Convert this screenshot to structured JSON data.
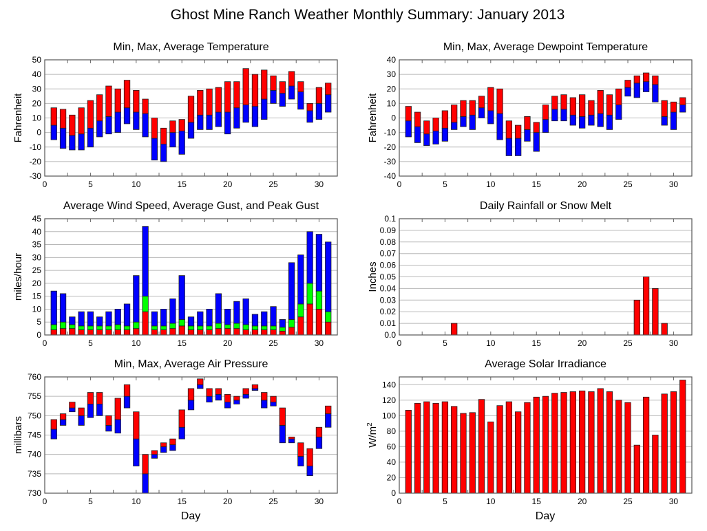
{
  "title": "Ghost Mine Ranch Weather Monthly Summary: January 2013",
  "xlabel": "Day",
  "colors": {
    "red": "#ff0000",
    "blue": "#0000ff",
    "green": "#00ff00"
  },
  "chart_data": [
    {
      "type": "bar",
      "title": "Min, Max, Average Temperature",
      "ylabel": "Fahrenheit",
      "ylim": [
        -30,
        50
      ],
      "yticks": [
        "-30",
        "-20",
        "-10",
        "0",
        "10",
        "20",
        "30",
        "40",
        "50"
      ],
      "xlim": [
        0,
        32
      ],
      "xticks": [
        "0",
        "5",
        "10",
        "15",
        "20",
        "25",
        "30"
      ],
      "mode": "minavgmax",
      "series": [
        {
          "name": "Min",
          "values": [
            -5,
            -11,
            -12,
            -12,
            -10,
            -3,
            -1,
            0,
            6,
            2,
            -3,
            -19,
            -20,
            -10,
            -15,
            -4,
            2,
            2,
            4,
            -1,
            3,
            7,
            4,
            9,
            20,
            18,
            23,
            16,
            7,
            9,
            14
          ]
        },
        {
          "name": "Average",
          "values": [
            5,
            3,
            -2,
            -1,
            3,
            8,
            11,
            14,
            17,
            14,
            13,
            -4,
            -8,
            0,
            1,
            7,
            12,
            12,
            14,
            14,
            17,
            19,
            18,
            23,
            29,
            27,
            32,
            28,
            15,
            20,
            26
          ]
        },
        {
          "name": "Max",
          "values": [
            17,
            16,
            12,
            17,
            22,
            26,
            32,
            30,
            36,
            29,
            23,
            10,
            3,
            8,
            9,
            25,
            29,
            30,
            31,
            35,
            35,
            44,
            40,
            43,
            39,
            35,
            42,
            35,
            20,
            31,
            34
          ]
        }
      ]
    },
    {
      "type": "bar",
      "title": "Min, Max, Average Dewpoint Temperature",
      "ylabel": "Fahrenheit",
      "ylim": [
        -40,
        40
      ],
      "yticks": [
        "-40",
        "-30",
        "-20",
        "-10",
        "0",
        "10",
        "20",
        "30",
        "40"
      ],
      "xlim": [
        0,
        32
      ],
      "xticks": [
        "0",
        "5",
        "10",
        "15",
        "20",
        "25",
        "30"
      ],
      "mode": "minavgmax",
      "series": [
        {
          "name": "Min",
          "values": [
            -13,
            -17,
            -19,
            -18,
            -16,
            -8,
            -6,
            -8,
            0,
            -4,
            -15,
            -26,
            -26,
            -16,
            -23,
            -10,
            -2,
            -2,
            -5,
            -7,
            -5,
            -6,
            -8,
            -1,
            15,
            14,
            18,
            11,
            -5,
            -8,
            4
          ]
        },
        {
          "name": "Average",
          "values": [
            -2,
            -6,
            -11,
            -9,
            -7,
            -3,
            1,
            2,
            7,
            5,
            3,
            -14,
            -14,
            -8,
            -10,
            -1,
            6,
            6,
            2,
            1,
            2,
            3,
            2,
            9,
            21,
            24,
            25,
            23,
            1,
            4,
            9
          ]
        },
        {
          "name": "Max",
          "values": [
            8,
            4,
            -2,
            0,
            5,
            9,
            12,
            12,
            15,
            21,
            20,
            -2,
            -5,
            1,
            -3,
            9,
            15,
            16,
            14,
            16,
            12,
            19,
            16,
            20,
            26,
            29,
            31,
            29,
            12,
            11,
            14
          ]
        }
      ]
    },
    {
      "type": "bar",
      "title": "Average Wind Speed, Average Gust, and Peak Gust",
      "ylabel": "miles/hour",
      "ylim": [
        0,
        45
      ],
      "yticks": [
        "0",
        "5",
        "10",
        "15",
        "20",
        "25",
        "30",
        "35",
        "40",
        "45"
      ],
      "xlim": [
        0,
        32
      ],
      "xticks": [
        "0",
        "5",
        "10",
        "15",
        "20",
        "25",
        "30"
      ],
      "mode": "stack3",
      "series": [
        {
          "name": "Average Wind Speed",
          "values": [
            2,
            2.5,
            2.5,
            2,
            2,
            2,
            2,
            2,
            2,
            2.5,
            9,
            2,
            2,
            2.5,
            3.5,
            2,
            2,
            2,
            2.5,
            2.5,
            2.5,
            2,
            2,
            2,
            2,
            1.5,
            3,
            7,
            12,
            10,
            5
          ]
        },
        {
          "name": "Average Gust",
          "values": [
            4,
            5,
            4,
            3.5,
            3.5,
            3.5,
            3.5,
            4,
            3.5,
            5,
            15,
            3.5,
            3.5,
            4.5,
            6,
            3.5,
            3.5,
            3.5,
            4.5,
            4,
            4.5,
            4,
            3.5,
            3.5,
            3.5,
            3,
            6,
            12,
            20,
            17,
            9
          ]
        },
        {
          "name": "Peak Gust",
          "values": [
            17,
            16,
            7,
            9,
            9,
            7,
            9,
            10,
            12,
            23,
            42,
            9,
            10,
            14,
            23,
            7,
            9,
            10,
            16,
            10,
            13,
            14,
            8,
            9,
            11,
            6,
            28,
            31,
            40,
            39,
            36
          ]
        }
      ]
    },
    {
      "type": "bar",
      "title": "Daily Rainfall or Snow Melt",
      "ylabel": "Inches",
      "ylim": [
        0,
        0.1
      ],
      "yticks": [
        "0.0",
        "0.01",
        "0.02",
        "0.03",
        "0.04",
        "0.05",
        "0.06",
        "0.07",
        "0.08",
        "0.09",
        "0.1"
      ],
      "xlim": [
        0,
        32
      ],
      "xticks": [
        "0",
        "5",
        "10",
        "15",
        "20",
        "25",
        "30"
      ],
      "mode": "single",
      "series": [
        {
          "name": "Rainfall",
          "values": [
            0,
            0,
            0,
            0,
            0,
            0.01,
            0,
            0,
            0,
            0,
            0,
            0,
            0,
            0,
            0,
            0,
            0,
            0,
            0,
            0,
            0,
            0,
            0,
            0,
            0,
            0.03,
            0.05,
            0.04,
            0.01,
            0,
            0
          ]
        }
      ]
    },
    {
      "type": "bar",
      "title": "Min, Max, Average Air Pressure",
      "ylabel": "millibars",
      "ylim": [
        730,
        760
      ],
      "yticks": [
        "730",
        "735",
        "740",
        "745",
        "750",
        "755",
        "760"
      ],
      "xlim": [
        0,
        32
      ],
      "xticks": [
        "0",
        "5",
        "10",
        "15",
        "20",
        "25",
        "30"
      ],
      "mode": "minavgmax",
      "series": [
        {
          "name": "Min",
          "values": [
            744,
            747.5,
            751,
            747.5,
            749.5,
            750,
            746,
            745.5,
            752,
            737,
            730,
            739,
            740.5,
            741,
            744,
            751.5,
            757,
            753.5,
            754,
            752,
            753,
            754.5,
            756.5,
            752,
            752.5,
            743,
            743,
            737,
            734.5,
            741.5,
            747
          ]
        },
        {
          "name": "Average",
          "values": [
            746.5,
            749,
            752,
            750,
            753,
            753,
            747.5,
            749,
            755,
            744,
            735,
            740,
            742,
            742.5,
            747,
            754,
            758,
            755,
            755.5,
            753.5,
            754,
            755.5,
            757,
            754,
            753.5,
            747.5,
            744,
            739.5,
            737,
            744.5,
            750.5
          ]
        },
        {
          "name": "Max",
          "values": [
            749,
            750.5,
            753.5,
            752,
            756,
            756,
            750,
            754.5,
            758,
            751,
            740,
            741,
            743,
            744,
            751.5,
            757,
            759.5,
            757,
            757,
            755.5,
            755,
            757,
            758,
            756,
            755,
            752,
            744.5,
            743,
            741.5,
            747,
            752.5
          ]
        }
      ]
    },
    {
      "type": "bar",
      "title": "Average Solar Irradiance",
      "ylabel": "W/m",
      "ylabel_sup": "2",
      "ylim": [
        0,
        150
      ],
      "yticks": [
        "0",
        "20",
        "40",
        "60",
        "80",
        "100",
        "120",
        "140"
      ],
      "ytick_values": [
        0,
        20,
        40,
        60,
        80,
        100,
        120,
        140
      ],
      "xlim": [
        0,
        32
      ],
      "xticks": [
        "0",
        "5",
        "10",
        "15",
        "20",
        "25",
        "30"
      ],
      "mode": "single",
      "series": [
        {
          "name": "Solar Irradiance",
          "values": [
            107,
            116,
            118,
            116,
            118,
            112,
            103,
            104,
            121,
            92,
            113,
            118,
            105,
            117,
            124,
            125,
            129,
            130,
            131,
            132,
            131,
            135,
            131,
            120,
            117,
            62,
            124,
            75,
            128,
            131,
            146
          ]
        }
      ]
    }
  ]
}
